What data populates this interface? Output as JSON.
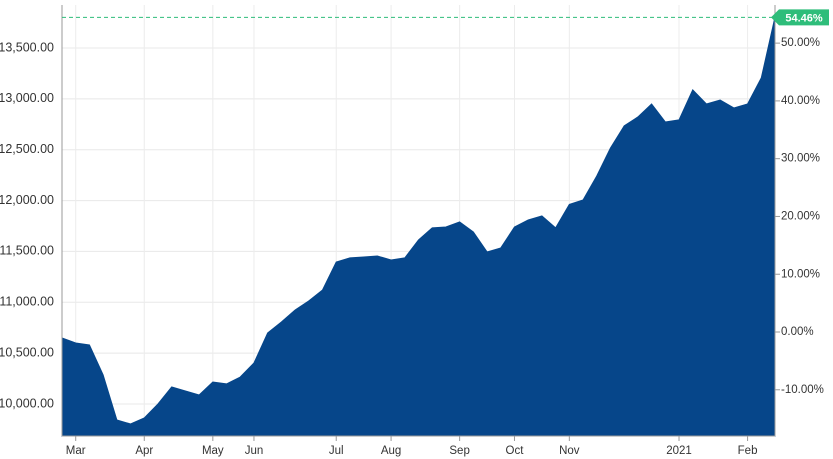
{
  "chart_data": {
    "type": "area",
    "color": "#06468a",
    "categories": [
      null,
      "Mar",
      null,
      null,
      null,
      null,
      "Apr",
      null,
      null,
      null,
      null,
      "May",
      null,
      null,
      "Jun",
      null,
      null,
      null,
      null,
      null,
      "Jul",
      null,
      null,
      null,
      "Aug",
      null,
      null,
      null,
      null,
      "Sep",
      null,
      null,
      null,
      "Oct",
      null,
      null,
      null,
      "Nov",
      null,
      null,
      null,
      null,
      null,
      null,
      null,
      "2021",
      null,
      null,
      null,
      null,
      "Feb",
      null,
      null
    ],
    "values": [
      10649,
      10600,
      10580,
      10285,
      9843,
      9803,
      9862,
      10000,
      10167,
      10128,
      10088,
      10216,
      10197,
      10265,
      10403,
      10698,
      10806,
      10924,
      11013,
      11121,
      11396,
      11436,
      11445,
      11455,
      11416,
      11436,
      11613,
      11731,
      11740,
      11790,
      11691,
      11495,
      11534,
      11740,
      11809,
      11849,
      11731,
      11962,
      12006,
      12242,
      12517,
      12734,
      12822,
      12950,
      12773,
      12793,
      13088,
      12950,
      12989,
      12911,
      12950,
      13206,
      13805
    ],
    "ylim": [
      9685,
      13923
    ],
    "yticks": [
      {
        "value": 10000,
        "label": "10,000.00"
      },
      {
        "value": 10500,
        "label": "10,500.00"
      },
      {
        "value": 11000,
        "label": "11,000.00"
      },
      {
        "value": 11500,
        "label": "11,500.00"
      },
      {
        "value": 12000,
        "label": "12,000.00"
      },
      {
        "value": 12500,
        "label": "12,500.00"
      },
      {
        "value": 13000,
        "label": "13,000.00"
      },
      {
        "value": 13500,
        "label": "13,500.00"
      }
    ],
    "y2lim": [
      -18,
      56.6
    ],
    "y2ticks": [
      {
        "value": -10,
        "label": "-10.00%"
      },
      {
        "value": 0,
        "label": "0.00%"
      },
      {
        "value": 10,
        "label": "10.00%"
      },
      {
        "value": 20,
        "label": "20.00%"
      },
      {
        "value": 30,
        "label": "30.00%"
      },
      {
        "value": 40,
        "label": "40.00%"
      },
      {
        "value": 50,
        "label": "50.00%"
      }
    ],
    "annotation": {
      "value": 54.46,
      "label": "54.46%",
      "color": "#2ebd7a"
    },
    "grid": true
  }
}
